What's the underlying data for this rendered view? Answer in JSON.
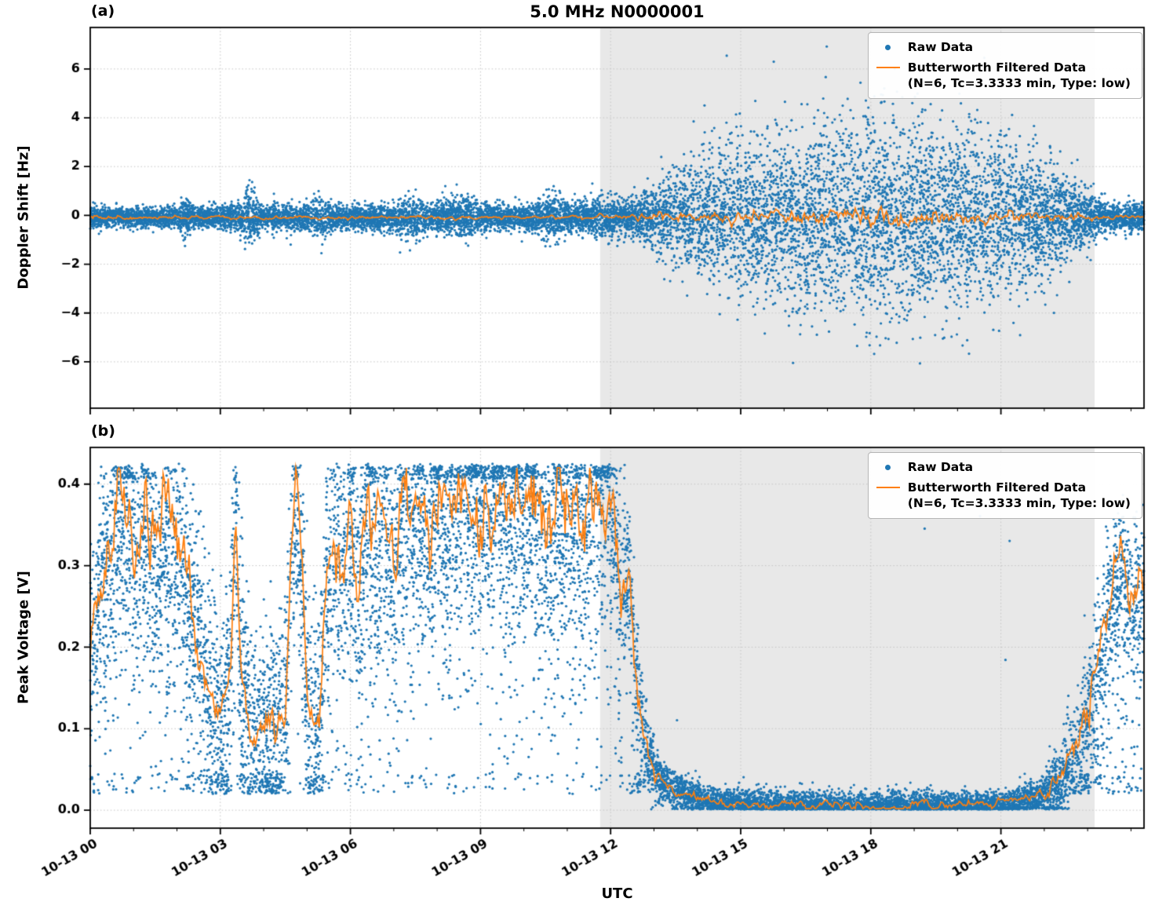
{
  "colors": {
    "raw": "#1f77b4",
    "filtered": "#ff7f0e",
    "shade": "#e8e8e8",
    "grid": "#c4c4c4"
  },
  "legend": {
    "raw_label": "Raw Data",
    "filtered_label": "Butterworth Filtered Data",
    "filtered_params": "(N=6, Tc=3.3333 min, Type: low)"
  },
  "chart_data": [
    {
      "type": "scatter",
      "panel_label": "(a)",
      "title": "5.0 MHz N0000001",
      "ylabel": "Doppler Shift [Hz]",
      "xlabel": "",
      "xlim": [
        0,
        24.3
      ],
      "ylim": [
        -7.9,
        7.7
      ],
      "yticks": [
        -6,
        -4,
        -2,
        0,
        2,
        4,
        6
      ],
      "ytick_labels": [
        "−6",
        "−4",
        "−2",
        "0",
        "2",
        "4",
        "6"
      ],
      "xticks": [
        0,
        3,
        6,
        9,
        12,
        15,
        18,
        21
      ],
      "xtick_labels": [
        "10-13 00",
        "10-13 03",
        "10-13 06",
        "10-13 09",
        "10-13 12",
        "10-13 15",
        "10-13 18",
        "10-13 21"
      ],
      "shaded_region": {
        "x0": 11.76,
        "x1": 23.16
      },
      "legend_entries": [
        "Raw Data",
        "Butterworth Filtered Data (N=6, Tc=3.3333 min, Type: low)"
      ],
      "raw_scatter": {
        "n_points": 13000,
        "baseline": -0.08,
        "outlier_prob": 0.005,
        "outlier_scale": 2.2,
        "envelope_x": [
          0,
          1,
          2,
          2.2,
          2.4,
          3,
          3.5,
          3.65,
          3.8,
          4,
          4.5,
          5,
          5.4,
          5.6,
          6,
          6.5,
          7,
          7.45,
          7.7,
          8,
          8.7,
          9,
          9.5,
          10,
          10.8,
          11,
          11.5,
          11.8,
          12,
          12.3,
          12.7,
          13,
          13.5,
          14,
          14.5,
          15,
          15.5,
          16,
          16.5,
          17,
          18,
          19,
          19.5,
          20,
          20.5,
          21,
          21.5,
          22,
          22.5,
          22.9,
          23.2,
          23.5,
          23.8,
          24.3
        ],
        "envelope_sigma": [
          0.2,
          0.2,
          0.22,
          0.45,
          0.22,
          0.25,
          0.3,
          0.8,
          0.45,
          0.25,
          0.3,
          0.25,
          0.45,
          0.25,
          0.22,
          0.25,
          0.3,
          0.5,
          0.3,
          0.28,
          0.45,
          0.28,
          0.25,
          0.28,
          0.45,
          0.3,
          0.35,
          0.5,
          0.4,
          0.35,
          0.45,
          0.7,
          1.0,
          1.25,
          1.45,
          1.6,
          1.7,
          1.8,
          1.85,
          1.9,
          1.95,
          1.95,
          1.9,
          1.85,
          1.75,
          1.6,
          1.45,
          1.2,
          0.95,
          0.7,
          0.45,
          0.3,
          0.25,
          0.3
        ]
      },
      "filtered_line": {
        "baseline": -0.08,
        "amp_x": [
          0,
          11.3,
          12.2,
          13,
          14,
          16,
          16.8,
          19.3,
          20,
          21.5,
          22.8,
          23.5,
          24.3
        ],
        "amp": [
          0.05,
          0.05,
          0.09,
          0.12,
          0.15,
          0.17,
          0.27,
          0.27,
          0.18,
          0.15,
          0.1,
          0.06,
          0.05
        ]
      }
    },
    {
      "type": "scatter",
      "panel_label": "(b)",
      "title": "",
      "ylabel": "Peak Voltage [V]",
      "xlabel": "UTC",
      "xlim": [
        0,
        24.3
      ],
      "ylim": [
        -0.022,
        0.445
      ],
      "yticks": [
        0,
        0.1,
        0.2,
        0.3,
        0.4
      ],
      "ytick_labels": [
        "0.0",
        "0.1",
        "0.2",
        "0.3",
        "0.4"
      ],
      "xticks": [
        0,
        3,
        6,
        9,
        12,
        15,
        18,
        21
      ],
      "xtick_labels": [
        "10-13 00",
        "10-13 03",
        "10-13 06",
        "10-13 09",
        "10-13 12",
        "10-13 15",
        "10-13 18",
        "10-13 21"
      ],
      "shaded_region": {
        "x0": 11.76,
        "x1": 23.16
      },
      "legend_entries": [
        "Raw Data",
        "Butterworth Filtered Data (N=6, Tc=3.3333 min, Type: low)"
      ],
      "raw_scatter": {
        "n_points": 13000,
        "vmax": 0.425,
        "tail_prob": 0.32,
        "tail_scale": 0.12,
        "mean_x": [
          0,
          0.2,
          0.45,
          0.7,
          0.9,
          1.1,
          1.3,
          1.5,
          1.7,
          1.9,
          2.1,
          2.35,
          2.5,
          2.7,
          2.9,
          3.05,
          3.25,
          3.35,
          3.45,
          3.6,
          3.75,
          3.9,
          4.1,
          4.3,
          4.5,
          4.62,
          4.75,
          4.9,
          5.0,
          5.15,
          5.3,
          5.45,
          5.6,
          5.8,
          6.0,
          6.2,
          6.4,
          6.6,
          6.8,
          7.0,
          7.2,
          7.4,
          7.6,
          7.8,
          8.0,
          8.2,
          8.4,
          8.6,
          8.8,
          9.0,
          9.2,
          9.4,
          9.6,
          9.8,
          10.0,
          10.2,
          10.4,
          10.6,
          10.8,
          11.0,
          11.2,
          11.4,
          11.6,
          11.8,
          11.95,
          12.1,
          12.25,
          12.4,
          12.55,
          12.7,
          12.85,
          13.0,
          13.2,
          13.5,
          13.8,
          14.2,
          14.6,
          15.0,
          16.0,
          17.0,
          18.0,
          19.0,
          20.0,
          20.6,
          21.0,
          21.4,
          21.8,
          22.1,
          22.4,
          22.7,
          23.0,
          23.2,
          23.4,
          23.6,
          23.8,
          24.0,
          24.3
        ],
        "mean_y": [
          0.17,
          0.26,
          0.32,
          0.37,
          0.39,
          0.33,
          0.36,
          0.3,
          0.33,
          0.33,
          0.3,
          0.25,
          0.22,
          0.16,
          0.13,
          0.11,
          0.2,
          0.38,
          0.2,
          0.12,
          0.11,
          0.1,
          0.095,
          0.1,
          0.12,
          0.3,
          0.39,
          0.28,
          0.14,
          0.11,
          0.13,
          0.3,
          0.33,
          0.31,
          0.35,
          0.3,
          0.37,
          0.33,
          0.36,
          0.3,
          0.37,
          0.34,
          0.38,
          0.33,
          0.4,
          0.35,
          0.38,
          0.41,
          0.36,
          0.4,
          0.37,
          0.41,
          0.36,
          0.39,
          0.35,
          0.4,
          0.36,
          0.33,
          0.38,
          0.35,
          0.4,
          0.34,
          0.38,
          0.41,
          0.42,
          0.35,
          0.27,
          0.31,
          0.2,
          0.12,
          0.07,
          0.05,
          0.035,
          0.025,
          0.018,
          0.012,
          0.01,
          0.008,
          0.006,
          0.005,
          0.005,
          0.005,
          0.006,
          0.007,
          0.008,
          0.01,
          0.014,
          0.022,
          0.04,
          0.07,
          0.11,
          0.16,
          0.22,
          0.27,
          0.3,
          0.26,
          0.27
        ],
        "spread_x": [
          0,
          11.85,
          12.5,
          13.1,
          14,
          21.2,
          21.9,
          22.5,
          23,
          24.3
        ],
        "spread_y": [
          0.07,
          0.07,
          0.045,
          0.014,
          0.009,
          0.008,
          0.012,
          0.025,
          0.045,
          0.05
        ]
      },
      "filtered_line": {
        "amp_x": [
          0,
          2.3,
          3.0,
          5.2,
          5.6,
          11.9,
          12.6,
          13.2,
          21.3,
          22.2,
          23,
          24.3
        ],
        "amp": [
          0.03,
          0.03,
          0.018,
          0.018,
          0.035,
          0.035,
          0.018,
          0.0035,
          0.0035,
          0.008,
          0.018,
          0.022
        ]
      }
    }
  ]
}
